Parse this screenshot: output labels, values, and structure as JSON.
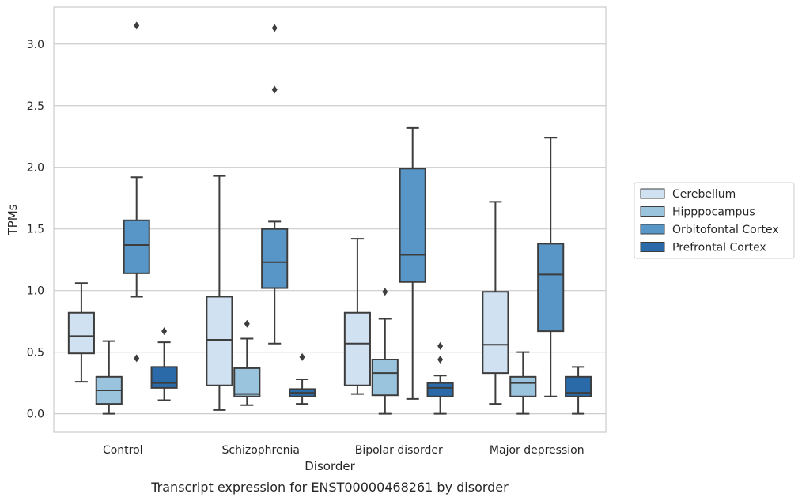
{
  "chart_data": {
    "type": "box",
    "caption": "Transcript expression for ENST00000468261 by disorder",
    "xlabel": "Disorder",
    "ylabel": "TPMs",
    "ylim": [
      -0.15,
      3.3
    ],
    "yticks": [
      0.0,
      0.5,
      1.0,
      1.5,
      2.0,
      2.5,
      3.0
    ],
    "grid": "horizontal",
    "legend_position": "right",
    "categories": [
      "Control",
      "Schizophrenia",
      "Bipolar disorder",
      "Major depression"
    ],
    "series": [
      {
        "name": "Cerebellum",
        "color": "#d0e1f2",
        "boxes": [
          {
            "whisker_low": 0.26,
            "q1": 0.49,
            "median": 0.63,
            "q3": 0.82,
            "whisker_high": 1.06,
            "outliers": []
          },
          {
            "whisker_low": 0.03,
            "q1": 0.23,
            "median": 0.6,
            "q3": 0.95,
            "whisker_high": 1.93,
            "outliers": []
          },
          {
            "whisker_low": 0.16,
            "q1": 0.23,
            "median": 0.57,
            "q3": 0.82,
            "whisker_high": 1.42,
            "outliers": []
          },
          {
            "whisker_low": 0.08,
            "q1": 0.33,
            "median": 0.56,
            "q3": 0.99,
            "whisker_high": 1.72,
            "outliers": []
          }
        ]
      },
      {
        "name": "Hipppocampus",
        "color": "#9ac4de",
        "boxes": [
          {
            "whisker_low": 0.0,
            "q1": 0.08,
            "median": 0.19,
            "q3": 0.3,
            "whisker_high": 0.59,
            "outliers": []
          },
          {
            "whisker_low": 0.07,
            "q1": 0.14,
            "median": 0.16,
            "q3": 0.37,
            "whisker_high": 0.61,
            "outliers": [
              0.73
            ]
          },
          {
            "whisker_low": 0.0,
            "q1": 0.15,
            "median": 0.33,
            "q3": 0.44,
            "whisker_high": 0.77,
            "outliers": [
              0.99
            ]
          },
          {
            "whisker_low": 0.0,
            "q1": 0.14,
            "median": 0.25,
            "q3": 0.3,
            "whisker_high": 0.5,
            "outliers": []
          }
        ]
      },
      {
        "name": "Orbitofontal Cortex",
        "color": "#5796c6",
        "boxes": [
          {
            "whisker_low": 0.95,
            "q1": 1.14,
            "median": 1.37,
            "q3": 1.57,
            "whisker_high": 1.92,
            "outliers": [
              0.45,
              3.15
            ]
          },
          {
            "whisker_low": 0.57,
            "q1": 1.02,
            "median": 1.23,
            "q3": 1.5,
            "whisker_high": 1.56,
            "outliers": [
              2.63,
              3.13
            ]
          },
          {
            "whisker_low": 0.12,
            "q1": 1.07,
            "median": 1.29,
            "q3": 1.99,
            "whisker_high": 2.32,
            "outliers": []
          },
          {
            "whisker_low": 0.14,
            "q1": 0.67,
            "median": 1.13,
            "q3": 1.38,
            "whisker_high": 2.24,
            "outliers": []
          }
        ]
      },
      {
        "name": "Prefrontal Cortex",
        "color": "#2a6aa8",
        "boxes": [
          {
            "whisker_low": 0.11,
            "q1": 0.21,
            "median": 0.25,
            "q3": 0.38,
            "whisker_high": 0.58,
            "outliers": [
              0.67
            ]
          },
          {
            "whisker_low": 0.08,
            "q1": 0.14,
            "median": 0.17,
            "q3": 0.2,
            "whisker_high": 0.28,
            "outliers": [
              0.46
            ]
          },
          {
            "whisker_low": 0.0,
            "q1": 0.14,
            "median": 0.21,
            "q3": 0.25,
            "whisker_high": 0.31,
            "outliers": [
              0.44,
              0.55
            ]
          },
          {
            "whisker_low": 0.0,
            "q1": 0.14,
            "median": 0.17,
            "q3": 0.3,
            "whisker_high": 0.38,
            "outliers": []
          }
        ]
      }
    ]
  }
}
